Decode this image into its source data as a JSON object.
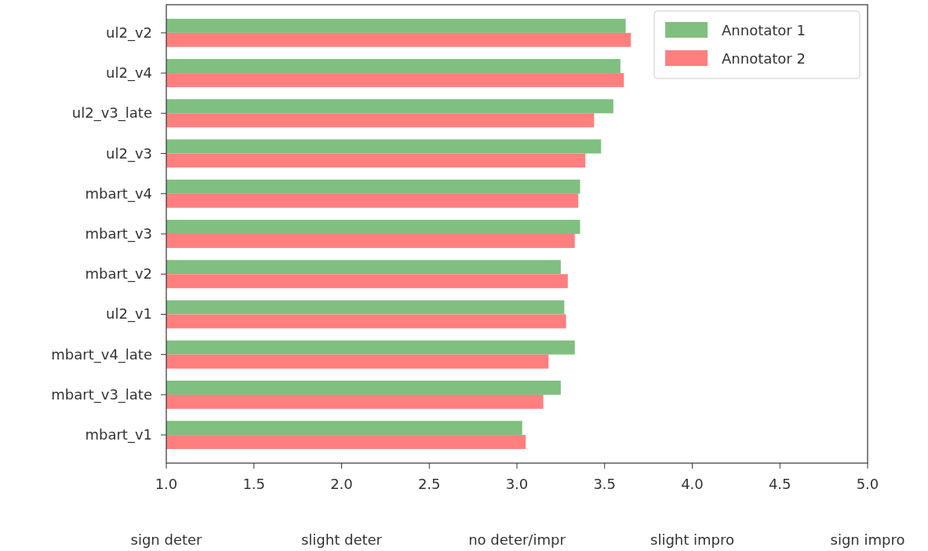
{
  "chart_data": {
    "type": "bar",
    "orientation": "horizontal",
    "categories": [
      "ul2_v2",
      "ul2_v4",
      "ul2_v3_late",
      "ul2_v3",
      "mbart_v4",
      "mbart_v3",
      "mbart_v2",
      "ul2_v1",
      "mbart_v4_late",
      "mbart_v3_late",
      "mbart_v1"
    ],
    "series": [
      {
        "name": "Annotator 1",
        "color": "#7fbf7f",
        "values": [
          3.62,
          3.59,
          3.55,
          3.48,
          3.36,
          3.36,
          3.25,
          3.27,
          3.33,
          3.25,
          3.03
        ]
      },
      {
        "name": "Annotator 2",
        "color": "#ff7f7f",
        "values": [
          3.65,
          3.61,
          3.44,
          3.39,
          3.35,
          3.33,
          3.29,
          3.28,
          3.18,
          3.15,
          3.05
        ]
      }
    ],
    "xlim": [
      1,
      5
    ],
    "xticks": [
      {
        "value": 1,
        "label": "1.0"
      },
      {
        "value": 1.5,
        "label": "1.5"
      },
      {
        "value": 2,
        "label": "2.0"
      },
      {
        "value": 2.5,
        "label": "2.5"
      },
      {
        "value": 3,
        "label": "3.0"
      },
      {
        "value": 3.5,
        "label": "3.5"
      },
      {
        "value": 4,
        "label": "4.0"
      },
      {
        "value": 4.5,
        "label": "4.5"
      },
      {
        "value": 5,
        "label": "5.0"
      }
    ],
    "legend": "top right",
    "annotations": [
      "sign deter",
      "slight deter",
      "no deter/impr",
      "slight impro",
      "sign impro"
    ]
  }
}
